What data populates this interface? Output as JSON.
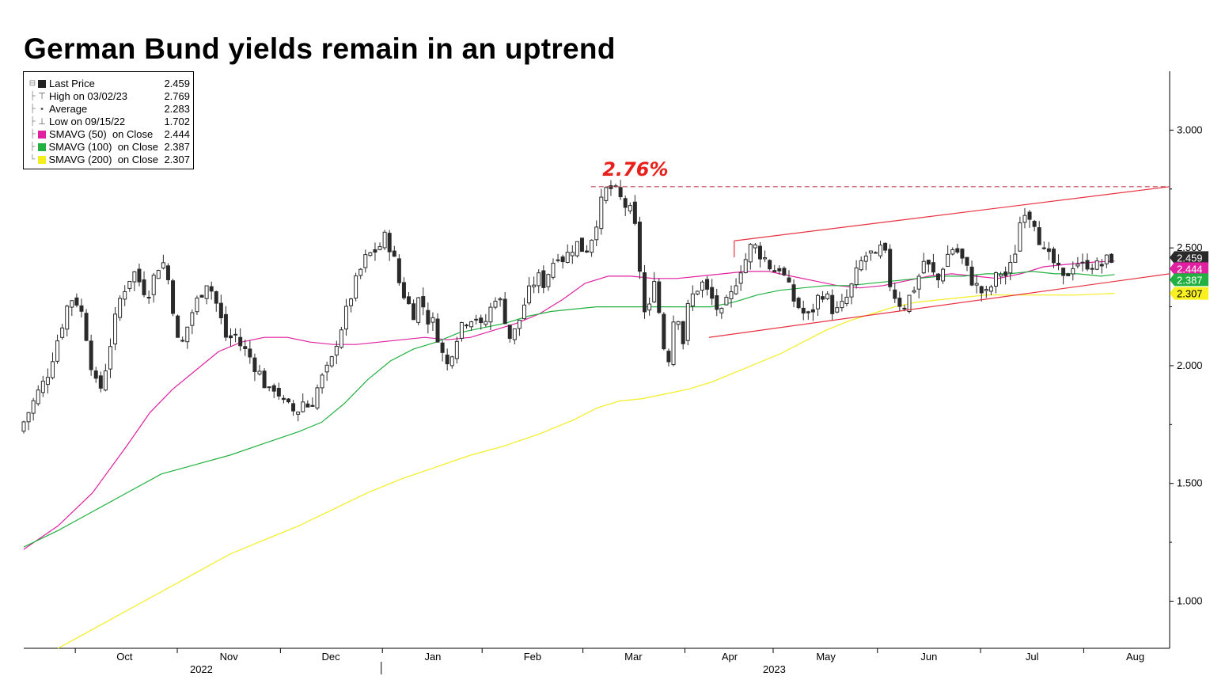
{
  "title": "German Bund yields remain in an uptrend",
  "annotation": {
    "text": "2.76%",
    "color": "#e8201c"
  },
  "legend": [
    {
      "symbol": "square",
      "color": "#222222",
      "label": "Last Price",
      "value": "2.459"
    },
    {
      "symbol": "high-icon",
      "color": "#555555",
      "label": "High on 03/02/23",
      "value": "2.769"
    },
    {
      "symbol": "average-icon",
      "color": "#555555",
      "label": "Average",
      "value": "2.283"
    },
    {
      "symbol": "low-icon",
      "color": "#555555",
      "label": "Low on 09/15/22",
      "value": "1.702"
    },
    {
      "symbol": "square",
      "color": "#e020a0",
      "label": "SMAVG (50)  on Close",
      "value": "2.444"
    },
    {
      "symbol": "square",
      "color": "#22b040",
      "label": "SMAVG (100)  on Close",
      "value": "2.387"
    },
    {
      "symbol": "square",
      "color": "#f4ee20",
      "label": "SMAVG (200)  on Close",
      "value": "2.307"
    }
  ],
  "price_tags": [
    {
      "value": 2.459,
      "label": "2.459",
      "bg": "#2a2a2a",
      "fg": "#ffffff"
    },
    {
      "value": 2.444,
      "label": "2.444",
      "bg": "#e020a0",
      "fg": "#ffffff"
    },
    {
      "value": 2.387,
      "label": "2.387",
      "bg": "#22b040",
      "fg": "#ffffff"
    },
    {
      "value": 2.307,
      "label": "2.307",
      "bg": "#f8f020",
      "fg": "#000000"
    }
  ],
  "chart_data": {
    "type": "candlestick",
    "title": "German Bund yields remain in an uptrend",
    "ylim": [
      0.8,
      3.25
    ],
    "yticks": [
      1.0,
      1.5,
      2.0,
      2.5,
      3.0
    ],
    "ytick_labels": [
      "1.000",
      "1.500",
      "2.000",
      "2.500",
      "3.000"
    ],
    "xlim": [
      0,
      1
    ],
    "month_labels": [
      {
        "label": "Oct",
        "x": 0.088
      },
      {
        "label": "Nov",
        "x": 0.179
      },
      {
        "label": "Dec",
        "x": 0.268
      },
      {
        "label": "Jan",
        "x": 0.357
      },
      {
        "label": "Feb",
        "x": 0.444
      },
      {
        "label": "Mar",
        "x": 0.532
      },
      {
        "label": "Apr",
        "x": 0.616
      },
      {
        "label": "May",
        "x": 0.7
      },
      {
        "label": "Jun",
        "x": 0.79
      },
      {
        "label": "Jul",
        "x": 0.88
      },
      {
        "label": "Aug",
        "x": 0.97
      }
    ],
    "month_ticks": [
      0.045,
      0.134,
      0.224,
      0.313,
      0.4,
      0.488,
      0.577,
      0.654,
      0.745,
      0.835,
      0.925
    ],
    "year_labels": [
      {
        "label": "2022",
        "x": 0.155
      },
      {
        "label": "2023",
        "x": 0.655
      }
    ],
    "year_divider_x": 0.312,
    "price_path": [
      [
        0.0,
        1.72
      ],
      [
        0.008,
        1.8
      ],
      [
        0.016,
        1.88
      ],
      [
        0.024,
        1.95
      ],
      [
        0.03,
        2.05
      ],
      [
        0.036,
        2.15
      ],
      [
        0.042,
        2.25
      ],
      [
        0.048,
        2.3
      ],
      [
        0.055,
        2.22
      ],
      [
        0.06,
        2.1
      ],
      [
        0.065,
        1.95
      ],
      [
        0.07,
        1.88
      ],
      [
        0.076,
        2.0
      ],
      [
        0.082,
        2.15
      ],
      [
        0.088,
        2.28
      ],
      [
        0.094,
        2.35
      ],
      [
        0.1,
        2.4
      ],
      [
        0.106,
        2.35
      ],
      [
        0.112,
        2.3
      ],
      [
        0.118,
        2.38
      ],
      [
        0.124,
        2.45
      ],
      [
        0.128,
        2.42
      ],
      [
        0.132,
        2.32
      ],
      [
        0.136,
        2.2
      ],
      [
        0.14,
        2.05
      ],
      [
        0.146,
        2.15
      ],
      [
        0.152,
        2.24
      ],
      [
        0.158,
        2.3
      ],
      [
        0.164,
        2.36
      ],
      [
        0.17,
        2.3
      ],
      [
        0.176,
        2.2
      ],
      [
        0.182,
        2.1
      ],
      [
        0.188,
        2.14
      ],
      [
        0.194,
        2.08
      ],
      [
        0.2,
        2.05
      ],
      [
        0.206,
        2.0
      ],
      [
        0.212,
        1.95
      ],
      [
        0.218,
        1.88
      ],
      [
        0.224,
        1.92
      ],
      [
        0.23,
        1.84
      ],
      [
        0.236,
        1.82
      ],
      [
        0.242,
        1.8
      ],
      [
        0.248,
        1.85
      ],
      [
        0.254,
        1.82
      ],
      [
        0.26,
        1.9
      ],
      [
        0.266,
        1.96
      ],
      [
        0.272,
        2.0
      ],
      [
        0.278,
        2.12
      ],
      [
        0.284,
        2.2
      ],
      [
        0.29,
        2.3
      ],
      [
        0.296,
        2.38
      ],
      [
        0.302,
        2.45
      ],
      [
        0.308,
        2.48
      ],
      [
        0.314,
        2.5
      ],
      [
        0.32,
        2.55
      ],
      [
        0.326,
        2.48
      ],
      [
        0.332,
        2.35
      ],
      [
        0.338,
        2.28
      ],
      [
        0.344,
        2.22
      ],
      [
        0.35,
        2.3
      ],
      [
        0.356,
        2.2
      ],
      [
        0.362,
        2.18
      ],
      [
        0.366,
        2.12
      ],
      [
        0.37,
        2.04
      ],
      [
        0.374,
        2.0
      ],
      [
        0.38,
        2.1
      ],
      [
        0.386,
        2.18
      ],
      [
        0.392,
        2.2
      ],
      [
        0.398,
        2.22
      ],
      [
        0.404,
        2.15
      ],
      [
        0.41,
        2.22
      ],
      [
        0.416,
        2.3
      ],
      [
        0.422,
        2.25
      ],
      [
        0.428,
        2.12
      ],
      [
        0.434,
        2.15
      ],
      [
        0.44,
        2.25
      ],
      [
        0.446,
        2.32
      ],
      [
        0.452,
        2.38
      ],
      [
        0.458,
        2.35
      ],
      [
        0.464,
        2.42
      ],
      [
        0.47,
        2.48
      ],
      [
        0.476,
        2.45
      ],
      [
        0.482,
        2.5
      ],
      [
        0.488,
        2.52
      ],
      [
        0.494,
        2.48
      ],
      [
        0.5,
        2.55
      ],
      [
        0.506,
        2.65
      ],
      [
        0.51,
        2.72
      ],
      [
        0.514,
        2.76
      ],
      [
        0.52,
        2.74
      ],
      [
        0.526,
        2.7
      ],
      [
        0.532,
        2.66
      ],
      [
        0.536,
        2.64
      ],
      [
        0.54,
        2.5
      ],
      [
        0.544,
        2.3
      ],
      [
        0.548,
        2.15
      ],
      [
        0.554,
        2.4
      ],
      [
        0.558,
        2.25
      ],
      [
        0.562,
        2.1
      ],
      [
        0.566,
        2.0
      ],
      [
        0.57,
        2.15
      ],
      [
        0.574,
        2.3
      ],
      [
        0.578,
        2.05
      ],
      [
        0.584,
        2.25
      ],
      [
        0.59,
        2.32
      ],
      [
        0.596,
        2.35
      ],
      [
        0.602,
        2.3
      ],
      [
        0.608,
        2.26
      ],
      [
        0.612,
        2.2
      ],
      [
        0.616,
        2.25
      ],
      [
        0.622,
        2.3
      ],
      [
        0.628,
        2.4
      ],
      [
        0.634,
        2.45
      ],
      [
        0.64,
        2.52
      ],
      [
        0.646,
        2.48
      ],
      [
        0.652,
        2.45
      ],
      [
        0.658,
        2.4
      ],
      [
        0.664,
        2.42
      ],
      [
        0.67,
        2.35
      ],
      [
        0.676,
        2.28
      ],
      [
        0.682,
        2.24
      ],
      [
        0.688,
        2.2
      ],
      [
        0.694,
        2.25
      ],
      [
        0.7,
        2.32
      ],
      [
        0.706,
        2.28
      ],
      [
        0.712,
        2.22
      ],
      [
        0.718,
        2.25
      ],
      [
        0.724,
        2.3
      ],
      [
        0.73,
        2.38
      ],
      [
        0.736,
        2.45
      ],
      [
        0.742,
        2.48
      ],
      [
        0.748,
        2.45
      ],
      [
        0.754,
        2.52
      ],
      [
        0.76,
        2.35
      ],
      [
        0.766,
        2.28
      ],
      [
        0.772,
        2.25
      ],
      [
        0.778,
        2.3
      ],
      [
        0.784,
        2.36
      ],
      [
        0.79,
        2.45
      ],
      [
        0.796,
        2.4
      ],
      [
        0.802,
        2.36
      ],
      [
        0.808,
        2.45
      ],
      [
        0.814,
        2.5
      ],
      [
        0.82,
        2.48
      ],
      [
        0.826,
        2.42
      ],
      [
        0.832,
        2.36
      ],
      [
        0.838,
        2.32
      ],
      [
        0.844,
        2.3
      ],
      [
        0.85,
        2.35
      ],
      [
        0.856,
        2.4
      ],
      [
        0.862,
        2.38
      ],
      [
        0.868,
        2.45
      ],
      [
        0.874,
        2.62
      ],
      [
        0.878,
        2.67
      ],
      [
        0.882,
        2.64
      ],
      [
        0.886,
        2.62
      ],
      [
        0.89,
        2.55
      ],
      [
        0.894,
        2.48
      ],
      [
        0.9,
        2.45
      ],
      [
        0.906,
        2.42
      ],
      [
        0.91,
        2.35
      ],
      [
        0.916,
        2.4
      ],
      [
        0.922,
        2.45
      ],
      [
        0.928,
        2.42
      ],
      [
        0.934,
        2.44
      ],
      [
        0.94,
        2.42
      ],
      [
        0.946,
        2.43
      ],
      [
        0.952,
        2.459
      ]
    ],
    "series": [
      {
        "name": "SMAVG (50)  on Close",
        "color": "#e020a0",
        "points": [
          [
            0.0,
            1.22
          ],
          [
            0.03,
            1.32
          ],
          [
            0.06,
            1.46
          ],
          [
            0.09,
            1.66
          ],
          [
            0.11,
            1.8
          ],
          [
            0.13,
            1.9
          ],
          [
            0.15,
            1.98
          ],
          [
            0.17,
            2.06
          ],
          [
            0.19,
            2.1
          ],
          [
            0.21,
            2.12
          ],
          [
            0.23,
            2.12
          ],
          [
            0.25,
            2.1
          ],
          [
            0.27,
            2.09
          ],
          [
            0.29,
            2.09
          ],
          [
            0.31,
            2.1
          ],
          [
            0.33,
            2.11
          ],
          [
            0.35,
            2.12
          ],
          [
            0.37,
            2.11
          ],
          [
            0.39,
            2.12
          ],
          [
            0.41,
            2.15
          ],
          [
            0.43,
            2.18
          ],
          [
            0.45,
            2.22
          ],
          [
            0.47,
            2.28
          ],
          [
            0.49,
            2.35
          ],
          [
            0.51,
            2.38
          ],
          [
            0.53,
            2.38
          ],
          [
            0.55,
            2.37
          ],
          [
            0.57,
            2.37
          ],
          [
            0.59,
            2.38
          ],
          [
            0.61,
            2.39
          ],
          [
            0.63,
            2.4
          ],
          [
            0.65,
            2.4
          ],
          [
            0.67,
            2.38
          ],
          [
            0.69,
            2.36
          ],
          [
            0.71,
            2.34
          ],
          [
            0.73,
            2.33
          ],
          [
            0.75,
            2.34
          ],
          [
            0.77,
            2.36
          ],
          [
            0.79,
            2.38
          ],
          [
            0.81,
            2.39
          ],
          [
            0.83,
            2.38
          ],
          [
            0.85,
            2.37
          ],
          [
            0.87,
            2.39
          ],
          [
            0.89,
            2.42
          ],
          [
            0.91,
            2.43
          ],
          [
            0.935,
            2.44
          ],
          [
            0.952,
            2.444
          ]
        ]
      },
      {
        "name": "SMAVG (100)  on Close",
        "color": "#22b040",
        "points": [
          [
            0.0,
            1.23
          ],
          [
            0.03,
            1.3
          ],
          [
            0.06,
            1.38
          ],
          [
            0.09,
            1.46
          ],
          [
            0.12,
            1.54
          ],
          [
            0.15,
            1.58
          ],
          [
            0.18,
            1.62
          ],
          [
            0.21,
            1.67
          ],
          [
            0.24,
            1.72
          ],
          [
            0.26,
            1.76
          ],
          [
            0.28,
            1.84
          ],
          [
            0.3,
            1.94
          ],
          [
            0.32,
            2.02
          ],
          [
            0.34,
            2.07
          ],
          [
            0.36,
            2.1
          ],
          [
            0.38,
            2.14
          ],
          [
            0.4,
            2.16
          ],
          [
            0.42,
            2.18
          ],
          [
            0.44,
            2.21
          ],
          [
            0.46,
            2.23
          ],
          [
            0.48,
            2.24
          ],
          [
            0.5,
            2.25
          ],
          [
            0.52,
            2.25
          ],
          [
            0.54,
            2.25
          ],
          [
            0.56,
            2.25
          ],
          [
            0.58,
            2.25
          ],
          [
            0.6,
            2.25
          ],
          [
            0.62,
            2.27
          ],
          [
            0.64,
            2.3
          ],
          [
            0.66,
            2.32
          ],
          [
            0.68,
            2.33
          ],
          [
            0.7,
            2.34
          ],
          [
            0.72,
            2.34
          ],
          [
            0.74,
            2.35
          ],
          [
            0.76,
            2.36
          ],
          [
            0.78,
            2.37
          ],
          [
            0.8,
            2.38
          ],
          [
            0.82,
            2.38
          ],
          [
            0.84,
            2.39
          ],
          [
            0.86,
            2.39
          ],
          [
            0.88,
            2.4
          ],
          [
            0.9,
            2.39
          ],
          [
            0.92,
            2.39
          ],
          [
            0.94,
            2.38
          ],
          [
            0.952,
            2.387
          ]
        ]
      },
      {
        "name": "SMAVG (200)  on Close",
        "color": "#f4ee20",
        "points": [
          [
            0.03,
            0.8
          ],
          [
            0.06,
            0.88
          ],
          [
            0.09,
            0.96
          ],
          [
            0.12,
            1.04
          ],
          [
            0.15,
            1.12
          ],
          [
            0.18,
            1.2
          ],
          [
            0.21,
            1.26
          ],
          [
            0.24,
            1.32
          ],
          [
            0.27,
            1.39
          ],
          [
            0.3,
            1.46
          ],
          [
            0.33,
            1.52
          ],
          [
            0.36,
            1.57
          ],
          [
            0.39,
            1.62
          ],
          [
            0.42,
            1.66
          ],
          [
            0.45,
            1.71
          ],
          [
            0.48,
            1.77
          ],
          [
            0.5,
            1.82
          ],
          [
            0.52,
            1.85
          ],
          [
            0.54,
            1.86
          ],
          [
            0.56,
            1.88
          ],
          [
            0.58,
            1.9
          ],
          [
            0.6,
            1.93
          ],
          [
            0.62,
            1.97
          ],
          [
            0.64,
            2.01
          ],
          [
            0.66,
            2.05
          ],
          [
            0.68,
            2.1
          ],
          [
            0.7,
            2.15
          ],
          [
            0.72,
            2.19
          ],
          [
            0.74,
            2.22
          ],
          [
            0.76,
            2.25
          ],
          [
            0.78,
            2.27
          ],
          [
            0.8,
            2.28
          ],
          [
            0.82,
            2.29
          ],
          [
            0.84,
            2.3
          ],
          [
            0.86,
            2.3
          ],
          [
            0.88,
            2.3
          ],
          [
            0.9,
            2.3
          ],
          [
            0.92,
            2.3
          ],
          [
            0.952,
            2.307
          ]
        ]
      }
    ],
    "trendlines": [
      {
        "name": "upper-channel",
        "color": "#e83040",
        "from": [
          0.62,
          2.53
        ],
        "to": [
          1.0,
          2.76
        ]
      },
      {
        "name": "lower-channel",
        "color": "#e83040",
        "from": [
          0.598,
          2.12
        ],
        "to": [
          1.0,
          2.39
        ]
      },
      {
        "name": "upper-channel-start",
        "color": "#e83040",
        "from": [
          0.62,
          2.46
        ],
        "to": [
          0.62,
          2.53
        ]
      },
      {
        "name": "resistance-2.76",
        "color": "#c04050",
        "dashed": true,
        "from": [
          0.495,
          2.76
        ],
        "to": [
          1.0,
          2.76
        ]
      }
    ]
  }
}
